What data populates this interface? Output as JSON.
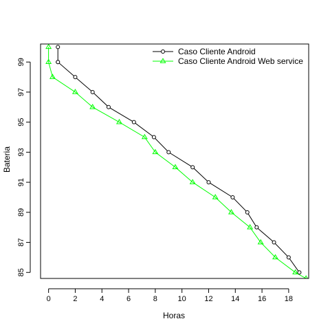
{
  "chart_data": {
    "type": "line",
    "title": "",
    "xlabel": "Horas",
    "ylabel": "Bateria",
    "xlim": [
      -0.6,
      19.5
    ],
    "ylim": [
      84.6,
      100.2
    ],
    "xticks": [
      0,
      2,
      4,
      6,
      8,
      10,
      12,
      14,
      16,
      18
    ],
    "yticks": [
      85,
      87,
      89,
      91,
      93,
      95,
      97,
      99
    ],
    "legend_position": "top-right",
    "series": [
      {
        "name": "Caso Cliente Android",
        "color": "#000000",
        "marker": "circle",
        "x": [
          0.7,
          0.7,
          0.7,
          2.0,
          3.3,
          4.5,
          6.4,
          7.9,
          9.0,
          10.8,
          12.0,
          13.8,
          14.9,
          15.6,
          16.9,
          18.0,
          18.8
        ],
        "y": [
          100,
          99,
          99,
          98,
          97,
          96,
          95,
          94,
          93,
          92,
          91,
          90,
          89,
          88,
          87,
          86,
          85
        ]
      },
      {
        "name": "Caso Cliente Android Web service",
        "color": "#00ff00",
        "marker": "triangle",
        "x": [
          0.0,
          0.0,
          0.3,
          2.0,
          3.3,
          5.3,
          7.2,
          8.0,
          9.5,
          10.8,
          12.5,
          13.7,
          15.1,
          15.9,
          17.0,
          18.5,
          19.3
        ],
        "y": [
          100,
          99,
          98,
          97,
          96,
          95,
          94,
          93,
          92,
          91,
          90,
          89,
          88,
          87,
          86,
          85,
          84.6
        ]
      }
    ]
  }
}
